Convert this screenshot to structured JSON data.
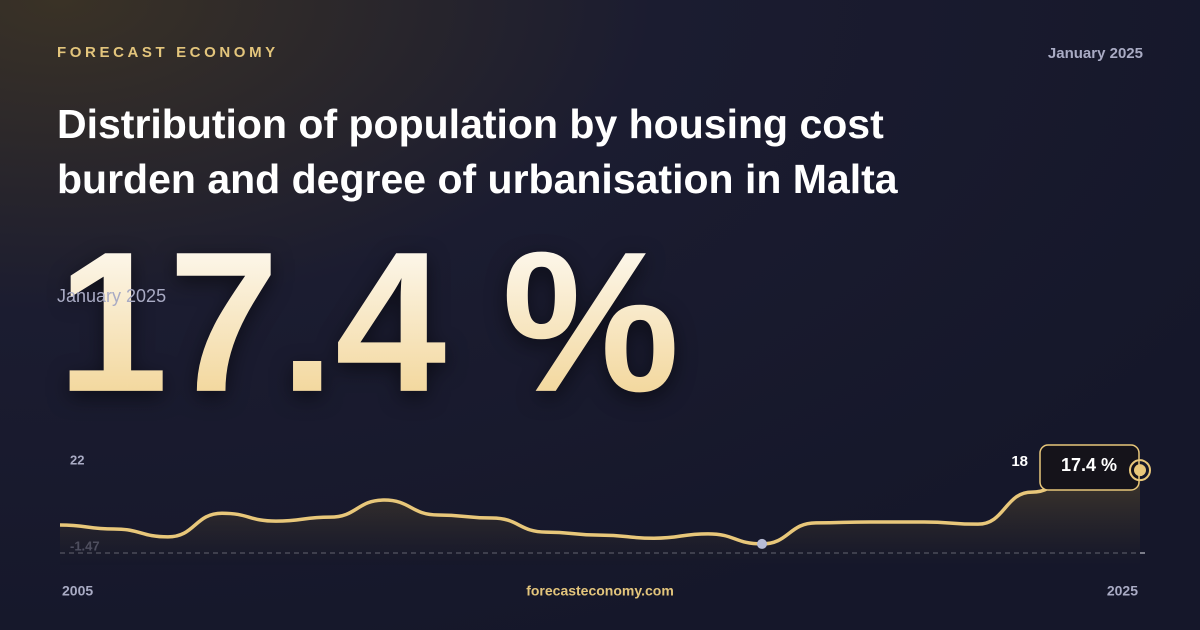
{
  "brand": "FORECAST ECONOMY",
  "date": "January 2025",
  "footer": "forecasteconomy.com",
  "chart_data": {
    "type": "line",
    "title": "Distribution of population by housing cost burden and degree of urbanisation in Malta",
    "headline": "17.4 %",
    "headline_date": "January 2025",
    "x": [
      2005,
      2006,
      2007,
      2008,
      2009,
      2010,
      2011,
      2012,
      2013,
      2014,
      2015,
      2016,
      2017,
      2018,
      2019,
      2020,
      2021,
      2022,
      2023,
      2024,
      2025
    ],
    "values": [
      4.9,
      4.0,
      2.2,
      7.6,
      5.8,
      6.7,
      10.6,
      7.2,
      6.5,
      3.3,
      2.6,
      1.9,
      2.9,
      0.6,
      5.4,
      5.6,
      5.6,
      5.1,
      12.4,
      18,
      17.4
    ],
    "color": "#e8c77a",
    "xlim": [
      2005,
      2025
    ],
    "xticks": [
      2005,
      2025
    ],
    "ylim": [
      -1.47,
      22
    ],
    "yticks": [
      -1.47,
      22
    ]
  }
}
